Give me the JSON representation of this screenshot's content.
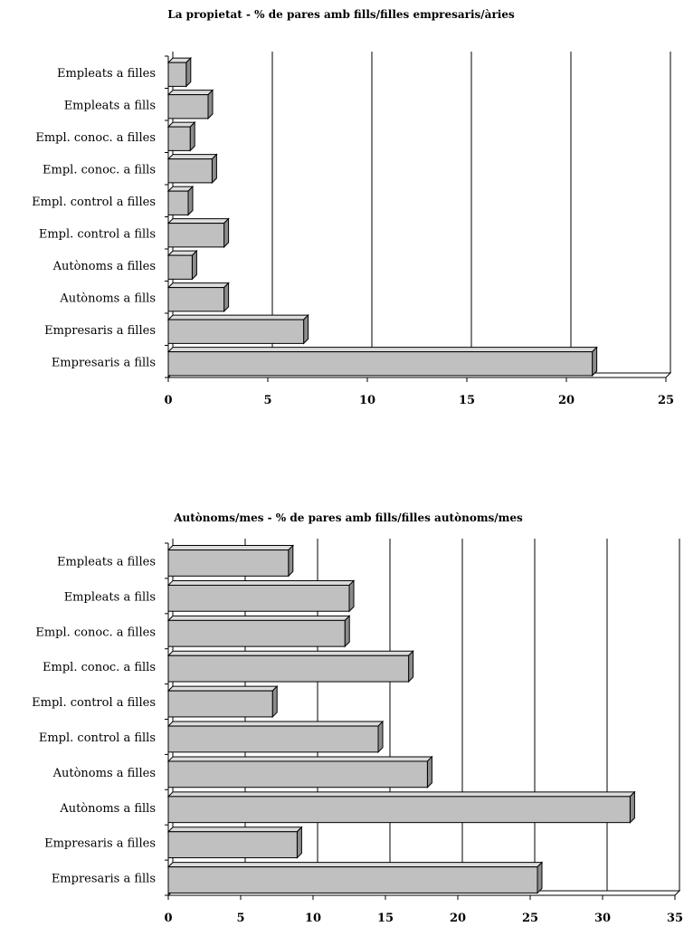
{
  "chart_data": [
    {
      "type": "bar",
      "orientation": "horizontal",
      "title": "La propietat - % de pares amb fills/filles empresaris/àries",
      "categories": [
        "Empleats a filles",
        "Empleats a fills",
        "Empl. conoc. a filles",
        "Empl. conoc. a fills",
        "Empl. control a filles",
        "Empl. control a fills",
        "Autònoms a filles",
        "Autònoms a fills",
        "Empresaris a filles",
        "Empresaris a fills"
      ],
      "values": [
        0.9,
        2.0,
        1.1,
        2.2,
        1.0,
        2.8,
        1.2,
        2.8,
        6.8,
        21.3
      ],
      "xlim": [
        0,
        25
      ],
      "ticks": [
        "0",
        "5",
        "10",
        "15",
        "20",
        "25"
      ],
      "grid": "vertical",
      "bar_color": "#c0c0c0"
    },
    {
      "type": "bar",
      "orientation": "horizontal",
      "title": "Autònoms/mes - % de pares amb fills/filles autònoms/mes",
      "categories": [
        "Empleats a filles",
        "Empleats a fills",
        "Empl. conoc. a filles",
        "Empl. conoc. a fills",
        "Empl. control a filles",
        "Empl. control a fills",
        "Autònoms a filles",
        "Autònoms a fills",
        "Empresaris a filles",
        "Empresaris a fills"
      ],
      "values": [
        8.3,
        12.5,
        12.2,
        16.6,
        7.2,
        14.5,
        17.9,
        31.9,
        8.9,
        25.5
      ],
      "xlim": [
        0,
        35
      ],
      "ticks": [
        "0",
        "5",
        "10",
        "15",
        "20",
        "25",
        "30",
        "35"
      ],
      "grid": "vertical",
      "bar_color": "#c0c0c0"
    }
  ]
}
